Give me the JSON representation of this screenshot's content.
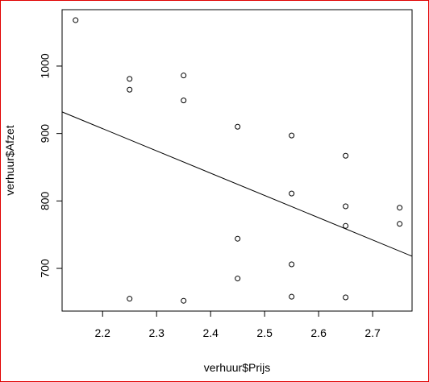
{
  "chart_data": {
    "type": "scatter",
    "x_label": "verhuur$Prijs",
    "y_label": "verhuur$Afzet",
    "x": [
      2.15,
      2.25,
      2.25,
      2.35,
      2.35,
      2.45,
      2.55,
      2.65,
      2.55,
      2.65,
      2.75,
      2.65,
      2.75,
      2.45,
      2.55,
      2.45,
      2.25,
      2.35,
      2.55,
      2.65
    ],
    "values": [
      1068,
      981,
      965,
      986,
      949,
      910,
      897,
      867,
      811,
      792,
      790,
      763,
      766,
      744,
      706,
      685,
      655,
      652,
      658,
      657
    ],
    "color": "#000000",
    "fit_line": {
      "x": [
        2.125,
        2.773
      ],
      "values": [
        932,
        718
      ]
    },
    "xlim": [
      2.125,
      2.773
    ],
    "ylim": [
      636.7,
      1083.6
    ],
    "xticks": [
      2.2,
      2.3,
      2.4,
      2.5,
      2.6,
      2.7
    ],
    "yticks": [
      700,
      800,
      900,
      1000
    ]
  }
}
